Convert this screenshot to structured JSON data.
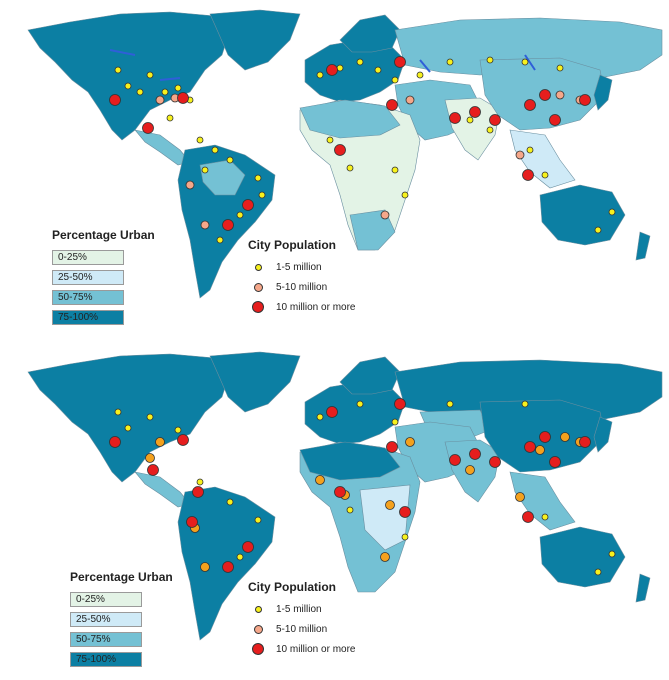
{
  "colors": {
    "ocean": "#ffffff",
    "urban_0_25": "#e3f3e6",
    "urban_25_50": "#cfeaf7",
    "urban_50_75": "#74c1d4",
    "urban_75_100": "#0c7fa3",
    "border": "#6a8fa0",
    "small_city": "#f7f11d",
    "medium_city": "#f5a78a",
    "medium_city_bottom": "#f4a11d",
    "large_city": "#e61e1e",
    "lakes": "#2f5fd8"
  },
  "panels": [
    {
      "id": "top",
      "legend_urban": {
        "title": "Percentage Urban",
        "items": [
          {
            "label": "0-25%",
            "color_key": "urban_0_25"
          },
          {
            "label": "25-50%",
            "color_key": "urban_25_50"
          },
          {
            "label": "50-75%",
            "color_key": "urban_50_75"
          },
          {
            "label": "75-100%",
            "color_key": "urban_75_100"
          }
        ]
      },
      "legend_city": {
        "title": "City Population",
        "items": [
          {
            "label": "1-5 million",
            "symbol": "small"
          },
          {
            "label": "5-10 million",
            "symbol": "medium"
          },
          {
            "label": "10 million or more",
            "symbol": "large"
          }
        ]
      }
    },
    {
      "id": "bottom",
      "legend_urban": {
        "title": "Percentage Urban",
        "items": [
          {
            "label": "0-25%",
            "color_key": "urban_0_25"
          },
          {
            "label": "25-50%",
            "color_key": "urban_25_50"
          },
          {
            "label": "50-75%",
            "color_key": "urban_50_75"
          },
          {
            "label": "75-100%",
            "color_key": "urban_75_100"
          }
        ]
      },
      "legend_city": {
        "title": "City Population",
        "items": [
          {
            "label": "1-5 million",
            "symbol": "small"
          },
          {
            "label": "5-10 million",
            "symbol": "medium"
          },
          {
            "label": "10 million or more",
            "symbol": "large"
          }
        ]
      }
    }
  ]
}
